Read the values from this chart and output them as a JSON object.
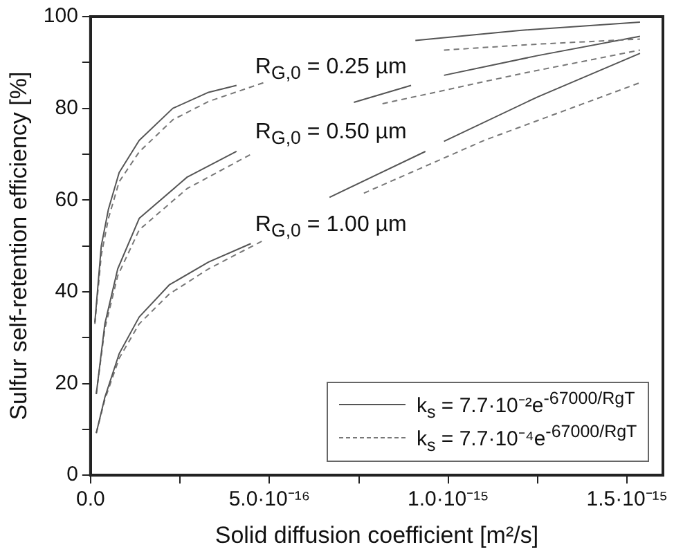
{
  "chart_data": {
    "type": "line",
    "xlabel": "Solid diffusion coefficient [m²/s]",
    "ylabel": "Sulfur self-retention efficiency [%]",
    "xlim": [
      0,
      1.6e-15
    ],
    "ylim": [
      0,
      100
    ],
    "xticks": [
      {
        "value": 0,
        "label": "0.0"
      },
      {
        "value": 2.5e-16,
        "label": null
      },
      {
        "value": 5e-16,
        "label": "5.0·10⁻¹⁶"
      },
      {
        "value": 7.5e-16,
        "label": null
      },
      {
        "value": 1e-15,
        "label": "1.0·10⁻¹⁵"
      },
      {
        "value": 1.25e-15,
        "label": null
      },
      {
        "value": 1.5e-15,
        "label": "1.5·10⁻¹⁵"
      }
    ],
    "yticks": [
      0,
      {
        "value": 10,
        "label": null
      },
      20,
      {
        "value": 30,
        "label": null
      },
      40,
      {
        "value": 50,
        "label": null
      },
      60,
      {
        "value": 70,
        "label": null
      },
      80,
      {
        "value": 90,
        "label": null
      },
      100
    ],
    "grid": false,
    "legend": "bottom right",
    "marker": "none",
    "series": [
      {
        "name": "k$_{s}$ = 7.7·10⁻²e$^{-67000/RgT}$",
        "color": "#555555",
        "line_style": "solid",
        "x": [
          1.2e-17,
          3e-17,
          5e-17,
          8e-17,
          1.36e-16,
          2.3e-16,
          3.3e-16,
          4.08e-16,
          6e-16,
          9.08e-16,
          1.2e-15,
          1.536e-15
        ],
        "values": [
          33.3,
          50,
          58,
          66,
          73,
          80,
          83.5,
          85,
          null,
          94.8,
          97,
          98.8
        ]
      },
      {
        "name": "k$_{s}$ = 7.7·10⁻⁴e$^{-67000/RgT}$",
        "color": "#777777",
        "line_style": "dashed",
        "x": [
          1.2e-17,
          3e-17,
          5e-17,
          8e-17,
          1.36e-16,
          2.3e-16,
          3.3e-16,
          4.84e-16,
          7e-16,
          9.88e-16,
          1.25e-15,
          1.536e-15
        ],
        "values": [
          33,
          48,
          56,
          64,
          70.5,
          77.5,
          81.5,
          85.6,
          null,
          92.7,
          94,
          95.1
        ]
      },
      {
        "color": "#555555",
        "line_style": "solid",
        "x": [
          1.6e-17,
          4e-17,
          7.6e-17,
          1.36e-16,
          2.7e-16,
          4.08e-16,
          5.8e-16,
          7.36e-16,
          8.96e-16,
          9.5e-16,
          9.88e-16,
          1.25e-15,
          1.536e-15
        ],
        "values": [
          17.7,
          33,
          45,
          56,
          65,
          70.6,
          null,
          81.3,
          85,
          null,
          87.2,
          91.5,
          95.7
        ]
      },
      {
        "color": "#777777",
        "line_style": "dashed",
        "x": [
          1.6e-17,
          4e-17,
          7.6e-17,
          1.36e-16,
          2.7e-16,
          4.56e-16,
          6.3e-16,
          8.16e-16,
          1.2e-15,
          1.536e-15
        ],
        "values": [
          17.7,
          32,
          43.5,
          53.5,
          62.5,
          70.3,
          null,
          81,
          87.5,
          92.7
        ]
      },
      {
        "color": "#555555",
        "line_style": "solid",
        "x": [
          1.6e-17,
          4e-17,
          8e-17,
          1.36e-16,
          2.2e-16,
          3.3e-16,
          4.48e-16,
          5.6e-16,
          6.68e-16,
          9.36e-16,
          9.6e-16,
          9.88e-16,
          1.25e-15,
          1.536e-15
        ],
        "values": [
          9.2,
          17,
          26.5,
          34.5,
          41.5,
          46.5,
          50.5,
          null,
          60.6,
          70.6,
          null,
          72.8,
          82.5,
          92
        ]
      },
      {
        "color": "#777777",
        "line_style": "dashed",
        "x": [
          1.6e-17,
          4e-17,
          8e-17,
          1.36e-16,
          2.2e-16,
          3.3e-16,
          4.88e-16,
          6.2e-16,
          7.64e-16,
          1.1e-15,
          1.536e-15
        ],
        "values": [
          9.2,
          16.5,
          25.5,
          33,
          39.5,
          45,
          51.4,
          null,
          61.5,
          73,
          85.6
        ]
      }
    ],
    "annotations": [
      "R$_{G,0}$ = 0.25 µm",
      "R$_{G,0}$ = 0.50 µm",
      "R$_{G,0}$ = 1.00 µm"
    ]
  }
}
